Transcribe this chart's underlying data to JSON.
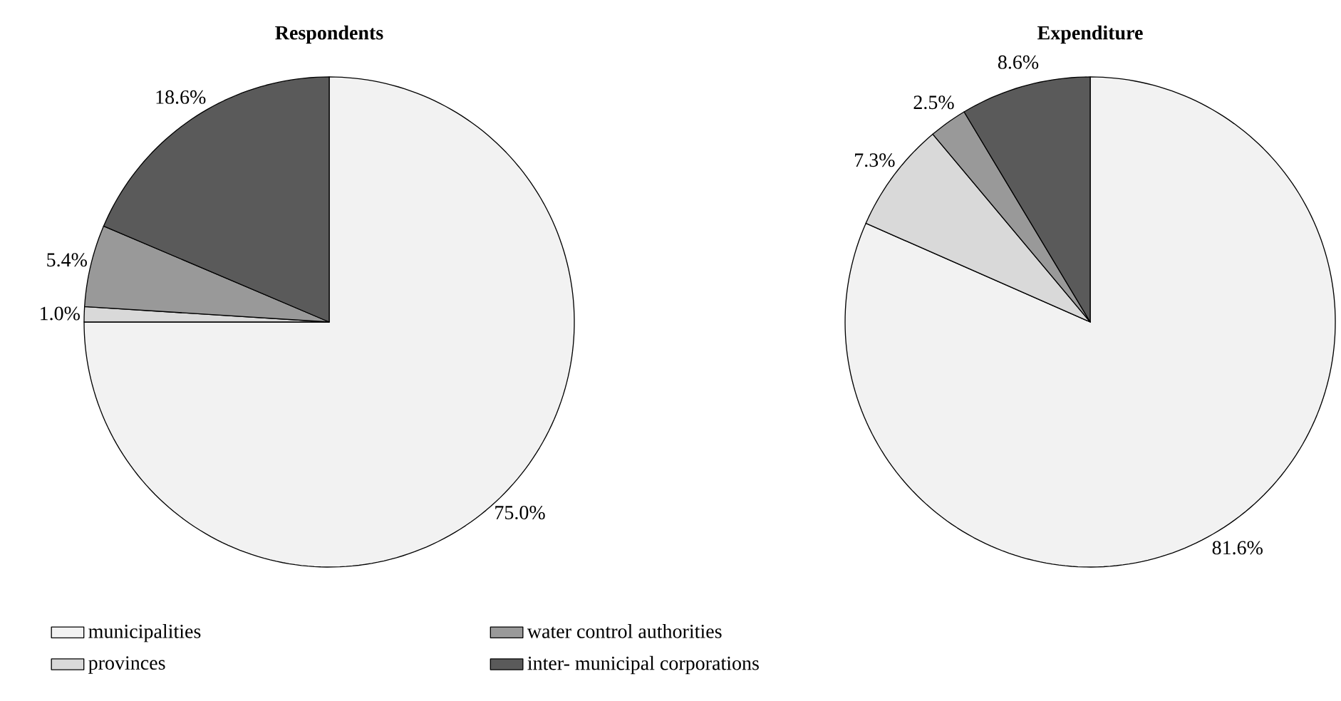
{
  "chart_data": [
    {
      "type": "pie",
      "title": "Respondents",
      "categories": [
        "municipalities",
        "provinces",
        "water control authorities",
        "inter- municipal corporations"
      ],
      "values": [
        75.0,
        1.0,
        5.4,
        18.6
      ],
      "colors": [
        "#f2f2f2",
        "#d9d9d9",
        "#999999",
        "#5a5a5a"
      ],
      "data_labels": true,
      "value_labels": [
        "75.0%",
        "1.0%",
        "5.4%",
        "18.6%"
      ],
      "legend": "bottom"
    },
    {
      "type": "pie",
      "title": "Expenditure",
      "categories": [
        null,
        null,
        null,
        null
      ],
      "values": [
        81.6,
        7.3,
        2.5,
        8.6
      ],
      "colors": [
        "#f2f2f2",
        "#d9d9d9",
        "#999999",
        "#5a5a5a"
      ],
      "data_labels": true,
      "value_labels": [
        "81.6%",
        "7.3%",
        "2.5%",
        "8.6%"
      ]
    }
  ]
}
